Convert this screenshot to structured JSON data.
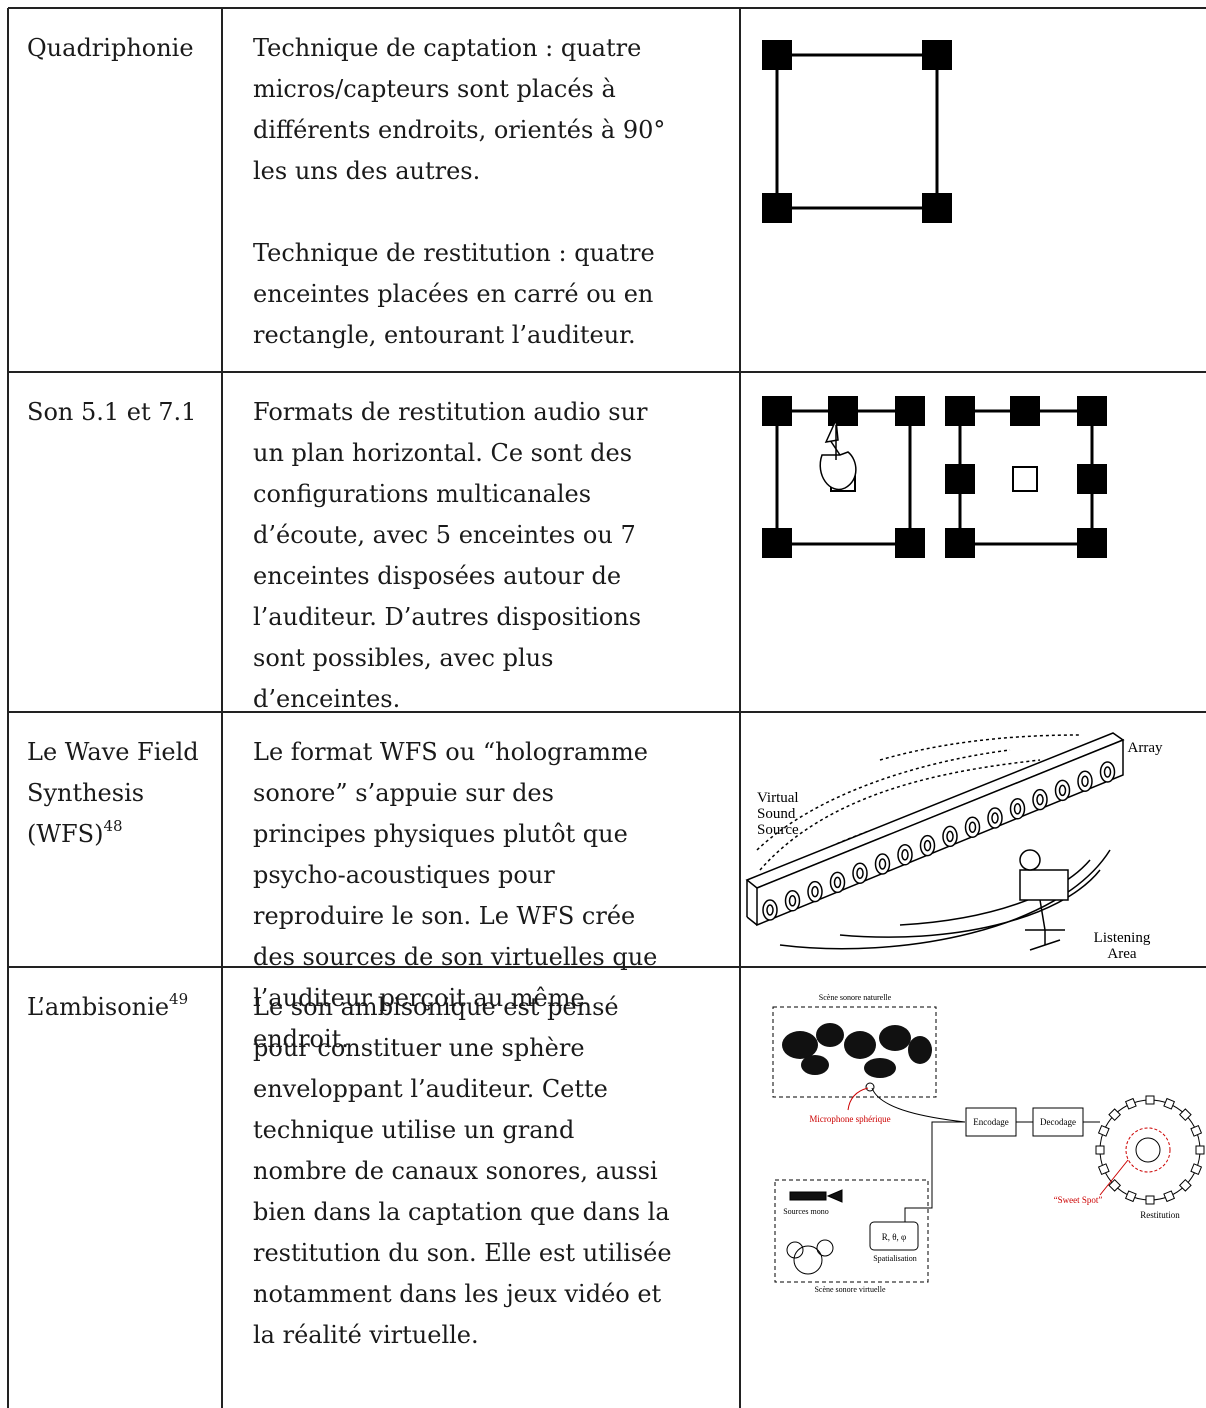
{
  "table": {
    "rows": [
      {
        "term": [
          "Quadriphonie"
        ],
        "description": [
          [
            "Technique de captation : quatre",
            "micros/capteurs sont placés à",
            "différents endroits, orientés à 90°",
            "les uns des autres."
          ],
          [
            "Technique de restitution : quatre",
            "enceintes placées en carré ou en",
            "rectangle, entourant l’auditeur."
          ]
        ]
      },
      {
        "term": [
          "Son 5.1 et 7.1"
        ],
        "description": [
          [
            "Formats de restitution audio sur",
            "un plan horizontal. Ce sont des",
            "configurations multicanales",
            "d’écoute, avec 5 enceintes ou 7",
            "enceintes disposées autour de",
            "l’auditeur. D’autres dispositions",
            "sont possibles, avec plus",
            "d’enceintes."
          ]
        ]
      },
      {
        "term": [
          "Le Wave Field",
          "Synthesis",
          "(WFS)"
        ],
        "footnote": "48",
        "description": [
          [
            "Le format WFS ou “hologramme",
            "sonore” s’appuie sur des",
            "principes physiques plutôt que",
            "psycho-acoustiques pour",
            "reproduire le son. Le WFS crée",
            "des sources de son virtuelles que",
            "l’auditeur perçoit au même",
            "endroit."
          ]
        ],
        "figure_labels": [
          "Array",
          "Virtual",
          "Sound",
          "Source",
          "Listening",
          "Area"
        ]
      },
      {
        "term": [
          "L’ambisonie"
        ],
        "footnote": "49",
        "description": [
          [
            "Le son ambisonique est pensé",
            "pour constituer une sphère",
            "enveloppant l’auditeur. Cette",
            "technique utilise un grand",
            "nombre de canaux sonores, aussi",
            "bien dans la captation que dans la",
            "restitution du son. Elle est utilisée",
            "notamment dans les jeux vidéo et",
            "la réalité virtuelle."
          ]
        ],
        "figure_labels": [
          "Scène sonore naturelle",
          "Microphone sphérique",
          "Encodage",
          "Decodage",
          "“Sweet Spot”",
          "Restitution",
          "Sources mono",
          "R, θ, φ",
          "Spatialisation",
          "Scène sonore virtuelle"
        ]
      }
    ]
  }
}
